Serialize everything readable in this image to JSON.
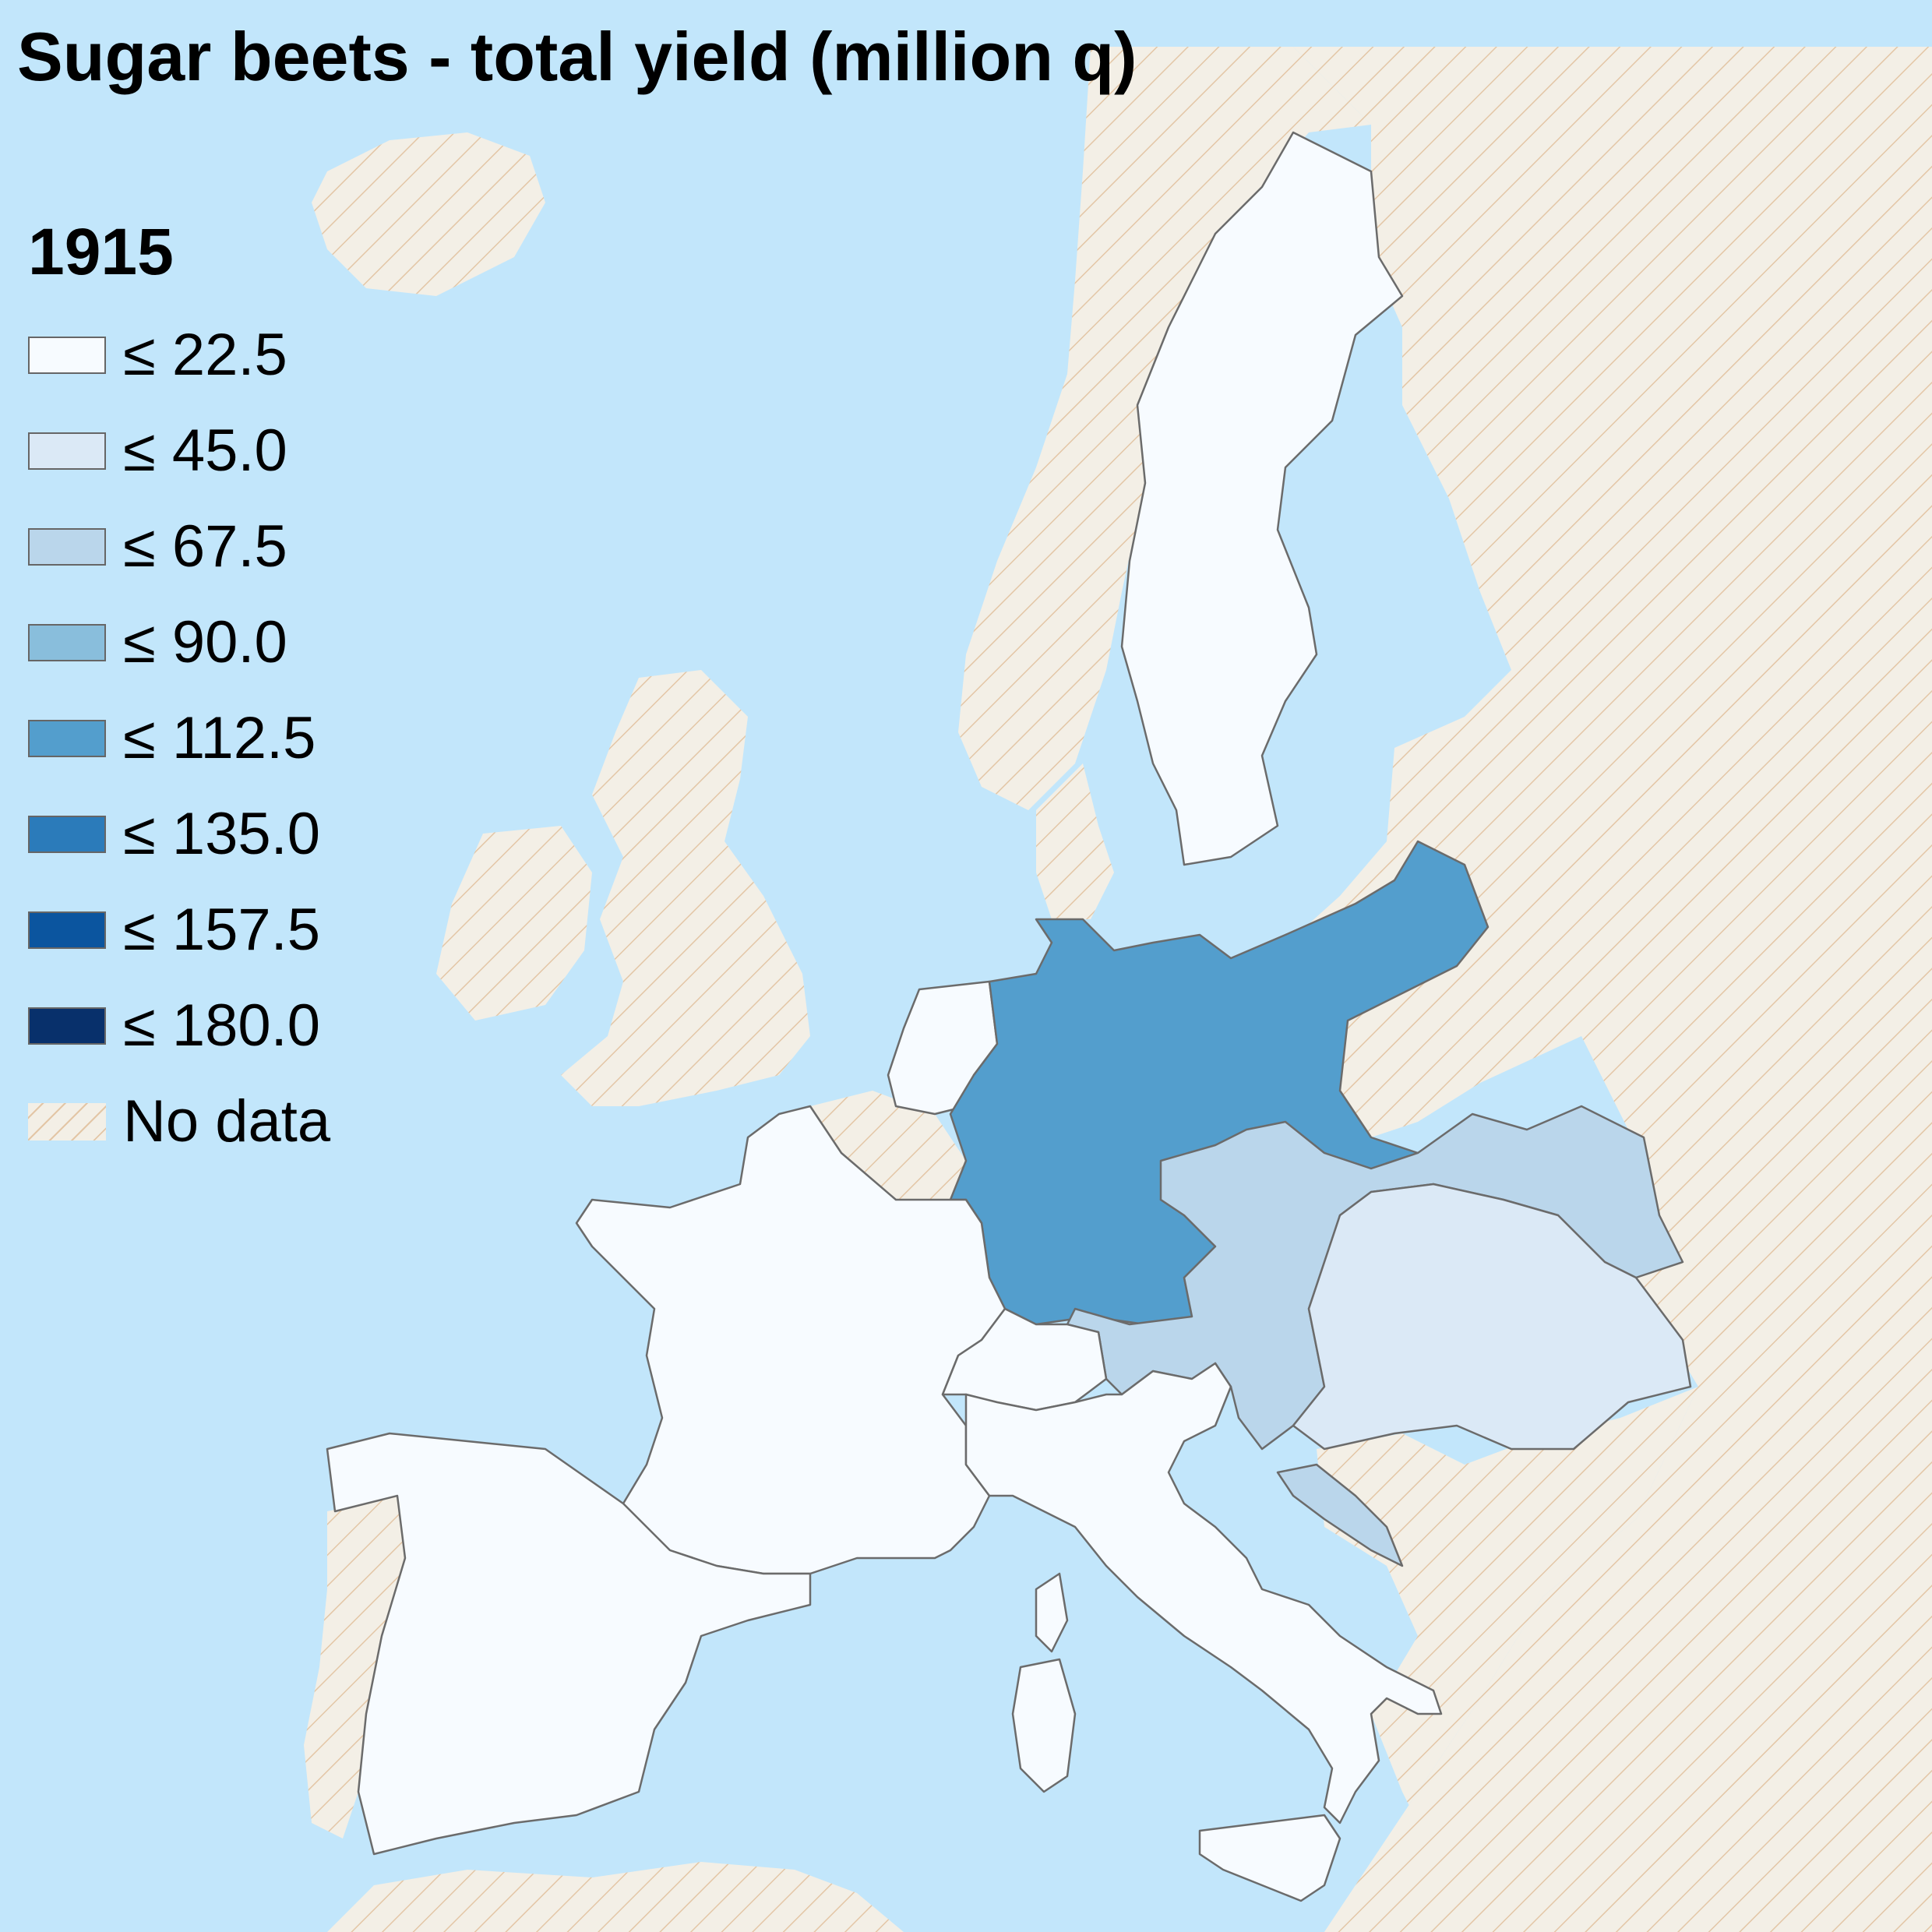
{
  "title": "Sugar beets - total yield (million q)",
  "year": "1915",
  "legend": [
    {
      "label": "≤ 22.5",
      "color": "#f7fbff"
    },
    {
      "label": "≤ 45.0",
      "color": "#dbe9f6"
    },
    {
      "label": "≤ 67.5",
      "color": "#bad6eb"
    },
    {
      "label": "≤ 90.0",
      "color": "#89bedc"
    },
    {
      "label": "≤ 112.5",
      "color": "#539ecd"
    },
    {
      "label": "≤ 135.0",
      "color": "#2b7bba"
    },
    {
      "label": "≤ 157.5",
      "color": "#0b559f"
    },
    {
      "label": "≤ 180.0",
      "color": "#08306b"
    },
    {
      "label": "No data",
      "color": "nodata"
    }
  ],
  "colors": {
    "sea": "#c2e6fb",
    "land_nodata": "#f3efe6",
    "hatch": "#e3c6a6",
    "border": "#6b6b6b"
  },
  "regions": [
    {
      "name": "Sweden",
      "bin": "≤ 22.5"
    },
    {
      "name": "German Empire",
      "bin": "≤ 112.5"
    },
    {
      "name": "Austria",
      "bin": "≤ 67.5"
    },
    {
      "name": "Hungary",
      "bin": "≤ 45.0"
    },
    {
      "name": "France",
      "bin": "≤ 22.5"
    },
    {
      "name": "Netherlands",
      "bin": "≤ 22.5"
    },
    {
      "name": "Switzerland",
      "bin": "≤ 22.5"
    },
    {
      "name": "Italy",
      "bin": "≤ 22.5"
    },
    {
      "name": "Spain",
      "bin": "≤ 22.5"
    },
    {
      "name": "Dalmatia",
      "bin": "≤ 67.5"
    }
  ]
}
